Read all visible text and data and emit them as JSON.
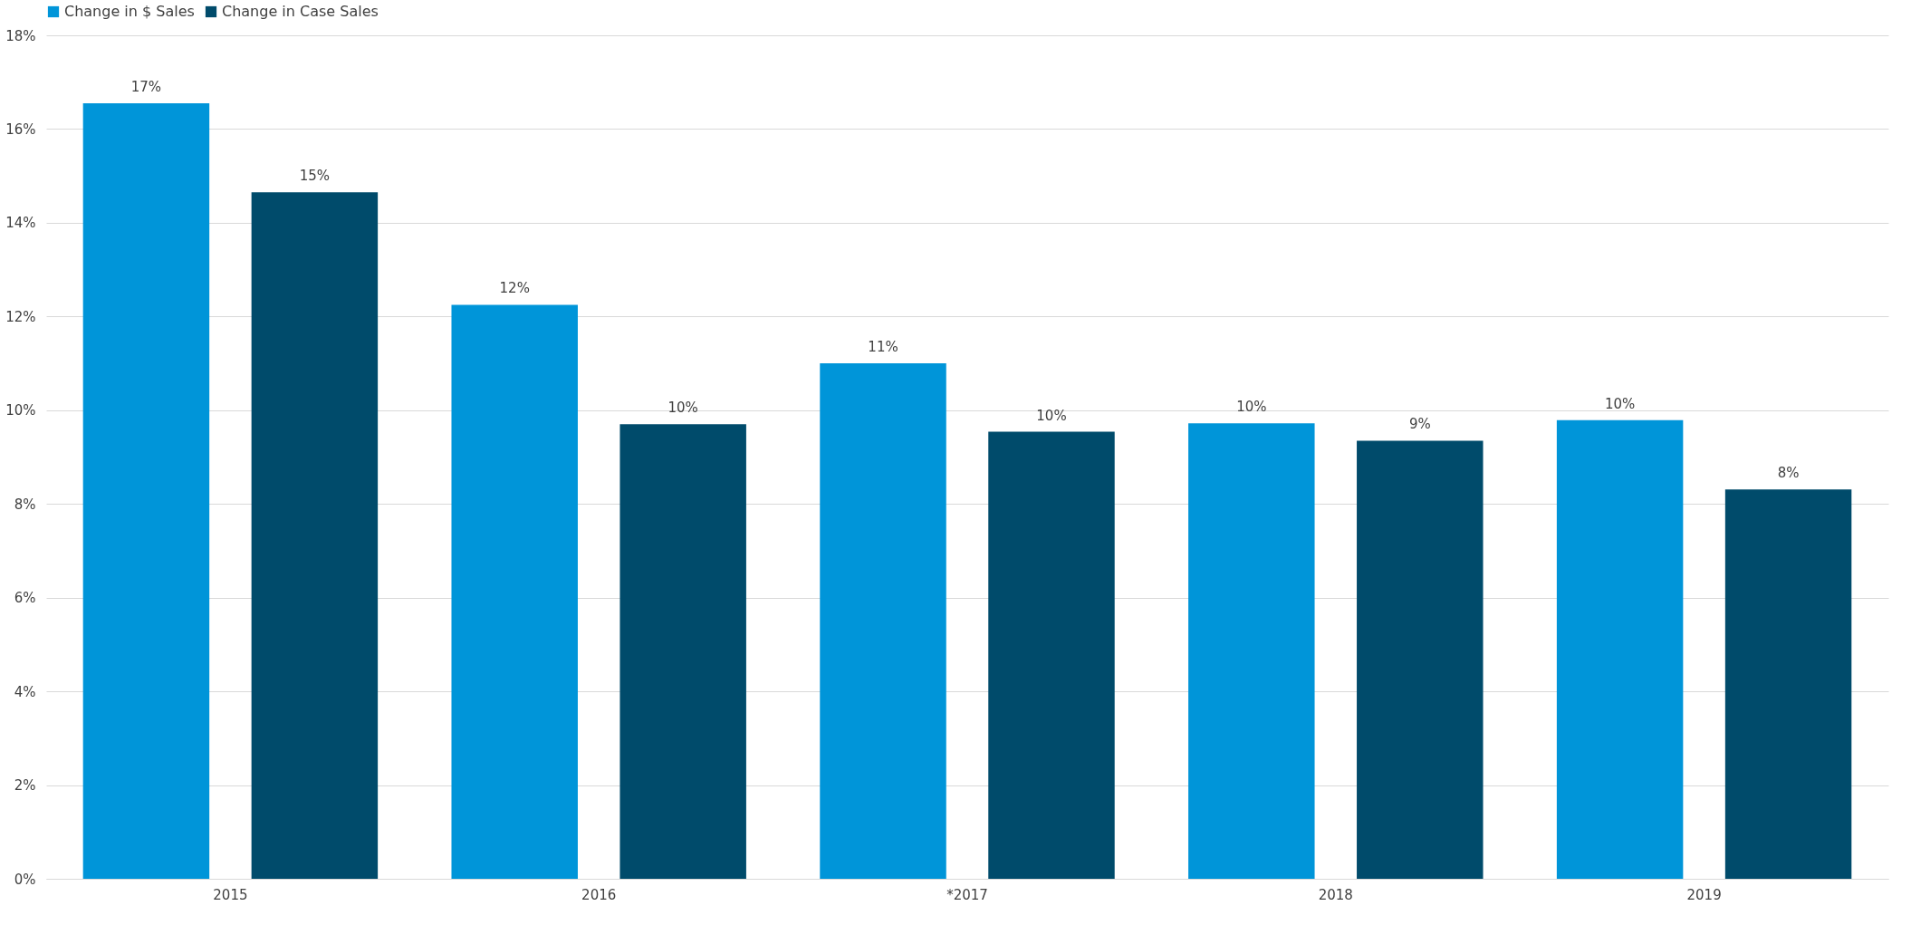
{
  "chart_data": {
    "type": "bar",
    "categories": [
      "2015",
      "2016",
      "*2017",
      "2018",
      "2019"
    ],
    "series": [
      {
        "name": "Change in $ Sales",
        "color": "#0095d9",
        "values": [
          16.55,
          12.25,
          11.0,
          9.72,
          9.79
        ],
        "value_labels": [
          "17%",
          "12%",
          "11%",
          "10%",
          "10%"
        ]
      },
      {
        "name": "Change in Case Sales",
        "color": "#004b6b",
        "values": [
          14.65,
          9.7,
          9.54,
          9.35,
          8.31
        ],
        "value_labels": [
          "15%",
          "10%",
          "10%",
          "9%",
          "8%"
        ]
      }
    ],
    "ylim": [
      0,
      18
    ],
    "yticks": [
      {
        "value": 0,
        "label": "0%"
      },
      {
        "value": 2,
        "label": "2%"
      },
      {
        "value": 4,
        "label": "4%"
      },
      {
        "value": 6,
        "label": "6%"
      },
      {
        "value": 8,
        "label": "8%"
      },
      {
        "value": 10,
        "label": "10%"
      },
      {
        "value": 12,
        "label": "12%"
      },
      {
        "value": 14,
        "label": "14%"
      },
      {
        "value": 16,
        "label": "16%"
      },
      {
        "value": 18,
        "label": "18%"
      }
    ],
    "grid": "y",
    "legend": "top"
  }
}
